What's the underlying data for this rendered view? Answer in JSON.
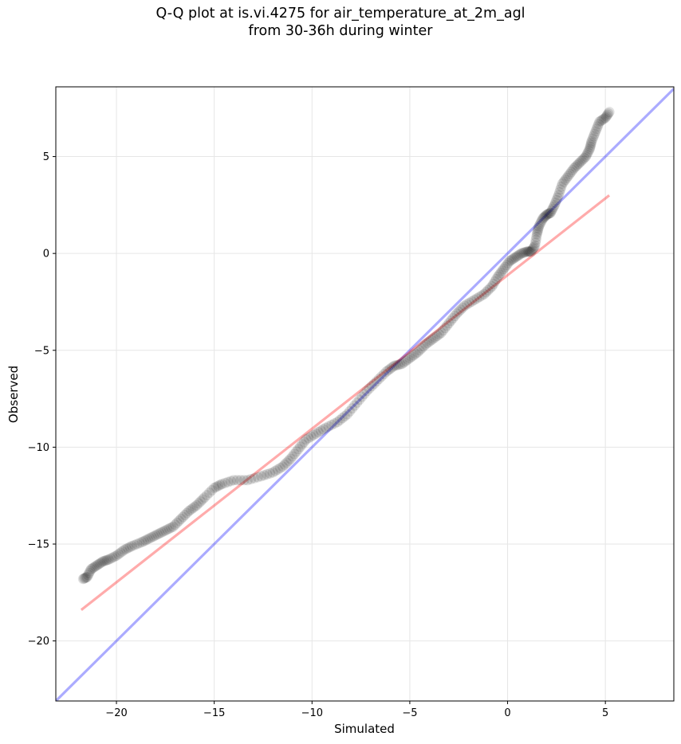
{
  "chart_data": {
    "type": "scatter",
    "title_line1": "Q-Q plot at is.vi.4275 for air_temperature_at_2m_agl",
    "title_line2": "from 30-36h during winter",
    "xlabel": "Simulated",
    "ylabel": "Observed",
    "xlim": [
      -23.1,
      8.5
    ],
    "ylim": [
      -23.1,
      8.6
    ],
    "xticks": [
      -20,
      -15,
      -10,
      -5,
      0,
      5
    ],
    "yticks": [
      -20,
      -15,
      -10,
      -5,
      0,
      5
    ],
    "xtick_labels": [
      "−20",
      "−15",
      "−10",
      "−5",
      "0",
      "5"
    ],
    "ytick_labels": [
      "−20",
      "−15",
      "−10",
      "−5",
      "0",
      "5"
    ],
    "grid": true,
    "colors": {
      "points": "#000000",
      "identity_line": "#0000ff",
      "fit_line": "#ff0000",
      "grid": "#e6e6e6"
    },
    "identity_line": {
      "x": [
        -23.1,
        8.5
      ],
      "y": [
        -23.1,
        8.5
      ]
    },
    "fit_line": {
      "x": [
        -21.8,
        5.2
      ],
      "y": [
        -18.4,
        3.0
      ]
    },
    "quantile_anchors": [
      [
        -21.7,
        -16.8
      ],
      [
        -21.5,
        -16.7
      ],
      [
        -21.3,
        -16.3
      ],
      [
        -21.0,
        -16.1
      ],
      [
        -20.7,
        -15.9
      ],
      [
        -20.4,
        -15.8
      ],
      [
        -20.0,
        -15.6
      ],
      [
        -19.6,
        -15.3
      ],
      [
        -19.2,
        -15.1
      ],
      [
        -18.7,
        -14.9
      ],
      [
        -18.3,
        -14.7
      ],
      [
        -17.9,
        -14.5
      ],
      [
        -17.5,
        -14.3
      ],
      [
        -17.1,
        -14.1
      ],
      [
        -16.7,
        -13.7
      ],
      [
        -16.3,
        -13.3
      ],
      [
        -15.9,
        -13.0
      ],
      [
        -15.5,
        -12.6
      ],
      [
        -15.0,
        -12.1
      ],
      [
        -14.6,
        -11.9
      ],
      [
        -14.0,
        -11.7
      ],
      [
        -13.3,
        -11.7
      ],
      [
        -12.6,
        -11.5
      ],
      [
        -12.0,
        -11.3
      ],
      [
        -11.5,
        -11.0
      ],
      [
        -11.1,
        -10.6
      ],
      [
        -10.7,
        -10.1
      ],
      [
        -10.3,
        -9.6
      ],
      [
        -9.8,
        -9.3
      ],
      [
        -9.3,
        -9.0
      ],
      [
        -8.7,
        -8.7
      ],
      [
        -8.2,
        -8.3
      ],
      [
        -7.7,
        -7.7
      ],
      [
        -7.2,
        -7.1
      ],
      [
        -6.7,
        -6.6
      ],
      [
        -6.2,
        -6.1
      ],
      [
        -5.8,
        -5.8
      ],
      [
        -5.4,
        -5.7
      ],
      [
        -5.0,
        -5.4
      ],
      [
        -4.6,
        -5.1
      ],
      [
        -4.2,
        -4.7
      ],
      [
        -3.8,
        -4.4
      ],
      [
        -3.4,
        -4.1
      ],
      [
        -3.0,
        -3.6
      ],
      [
        -2.6,
        -3.1
      ],
      [
        -2.2,
        -2.7
      ],
      [
        -1.7,
        -2.4
      ],
      [
        -1.2,
        -2.1
      ],
      [
        -0.8,
        -1.7
      ],
      [
        -0.5,
        -1.2
      ],
      [
        -0.2,
        -0.8
      ],
      [
        0.1,
        -0.4
      ],
      [
        0.4,
        -0.2
      ],
      [
        0.7,
        0.0
      ],
      [
        1.0,
        0.1
      ],
      [
        1.2,
        0.1
      ],
      [
        1.4,
        0.4
      ],
      [
        1.5,
        1.0
      ],
      [
        1.6,
        1.4
      ],
      [
        1.8,
        1.8
      ],
      [
        2.0,
        2.0
      ],
      [
        2.2,
        2.1
      ],
      [
        2.4,
        2.5
      ],
      [
        2.6,
        3.0
      ],
      [
        2.8,
        3.6
      ],
      [
        3.1,
        4.0
      ],
      [
        3.4,
        4.4
      ],
      [
        3.7,
        4.7
      ],
      [
        4.0,
        5.0
      ],
      [
        4.2,
        5.4
      ],
      [
        4.3,
        5.8
      ],
      [
        4.5,
        6.3
      ],
      [
        4.7,
        6.8
      ],
      [
        5.0,
        7.0
      ],
      [
        5.2,
        7.3
      ]
    ]
  }
}
